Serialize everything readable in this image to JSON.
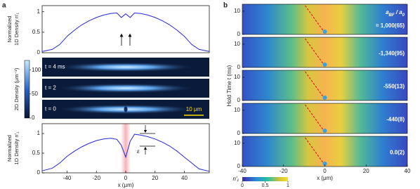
{
  "panel_labels": [
    "a",
    "b"
  ],
  "chart_data": [
    {
      "type": "line",
      "ylabel": [
        "Normalized",
        "1D Density n′₁"
      ],
      "x": [
        -57,
        -50,
        -45,
        -40,
        -35,
        -30,
        -25,
        -20,
        -15,
        -10,
        -6,
        -3,
        0,
        3,
        6,
        10,
        15,
        20,
        25,
        30,
        35,
        40,
        45,
        50,
        57
      ],
      "values": [
        0.03,
        0.08,
        0.2,
        0.4,
        0.55,
        0.68,
        0.78,
        0.86,
        0.92,
        0.96,
        0.97,
        0.86,
        0.95,
        0.86,
        0.97,
        0.96,
        0.92,
        0.86,
        0.78,
        0.68,
        0.55,
        0.4,
        0.2,
        0.08,
        0.03
      ],
      "color": "#2626e0",
      "xlim": [
        -57,
        57
      ],
      "ylim": [
        0,
        1.15
      ],
      "yticks": [
        0,
        0.5,
        1
      ]
    },
    {
      "type": "image",
      "colorbar_label": "2D Density (μm⁻²)",
      "clim": [
        0,
        120
      ],
      "cticks": [
        0,
        50,
        100
      ],
      "panels": [
        "t = 4 ms",
        "t = 2",
        "t = 0"
      ],
      "scale_bar": "10 μm"
    },
    {
      "type": "line",
      "ylabel": [
        "Normalized",
        "1D Density n′₁"
      ],
      "xlabel": "x (μm)",
      "annotation": "ε",
      "x": [
        -57,
        -50,
        -45,
        -40,
        -35,
        -30,
        -25,
        -20,
        -15,
        -10,
        -6,
        -3,
        0,
        3,
        6,
        10,
        15,
        20,
        25,
        30,
        35,
        40,
        45,
        50,
        57
      ],
      "values": [
        0.05,
        0.12,
        0.25,
        0.42,
        0.55,
        0.66,
        0.75,
        0.82,
        0.86,
        0.88,
        0.85,
        0.7,
        0.4,
        0.8,
        0.98,
        0.96,
        0.92,
        0.86,
        0.78,
        0.68,
        0.55,
        0.4,
        0.25,
        0.1,
        0.04
      ],
      "color": "#2626e0",
      "xlim": [
        -57,
        57
      ],
      "ylim": [
        0,
        1.25
      ],
      "yticks": [
        0,
        0.5,
        1
      ],
      "xticks": [
        -40,
        -20,
        0,
        20,
        40
      ]
    },
    {
      "type": "heatmap",
      "ylabel": "Hold Time t (ms)",
      "xlabel": "x (μm)",
      "header": [
        "a",
        "BF",
        " / a",
        "0"
      ],
      "panels": [
        "= 1,000(65)",
        "-1,340(95)",
        "-550(13)",
        "-440(8)",
        "0.0(2)"
      ],
      "xlim": [
        -40,
        40
      ],
      "xticks": [
        -40,
        -20,
        0,
        20,
        40
      ],
      "ylim": [
        0,
        13
      ],
      "yticks": [
        0,
        10
      ],
      "colorbar_label": "n′₁",
      "clim": [
        0,
        1
      ],
      "cticks": [
        0,
        0.5,
        1
      ]
    }
  ]
}
